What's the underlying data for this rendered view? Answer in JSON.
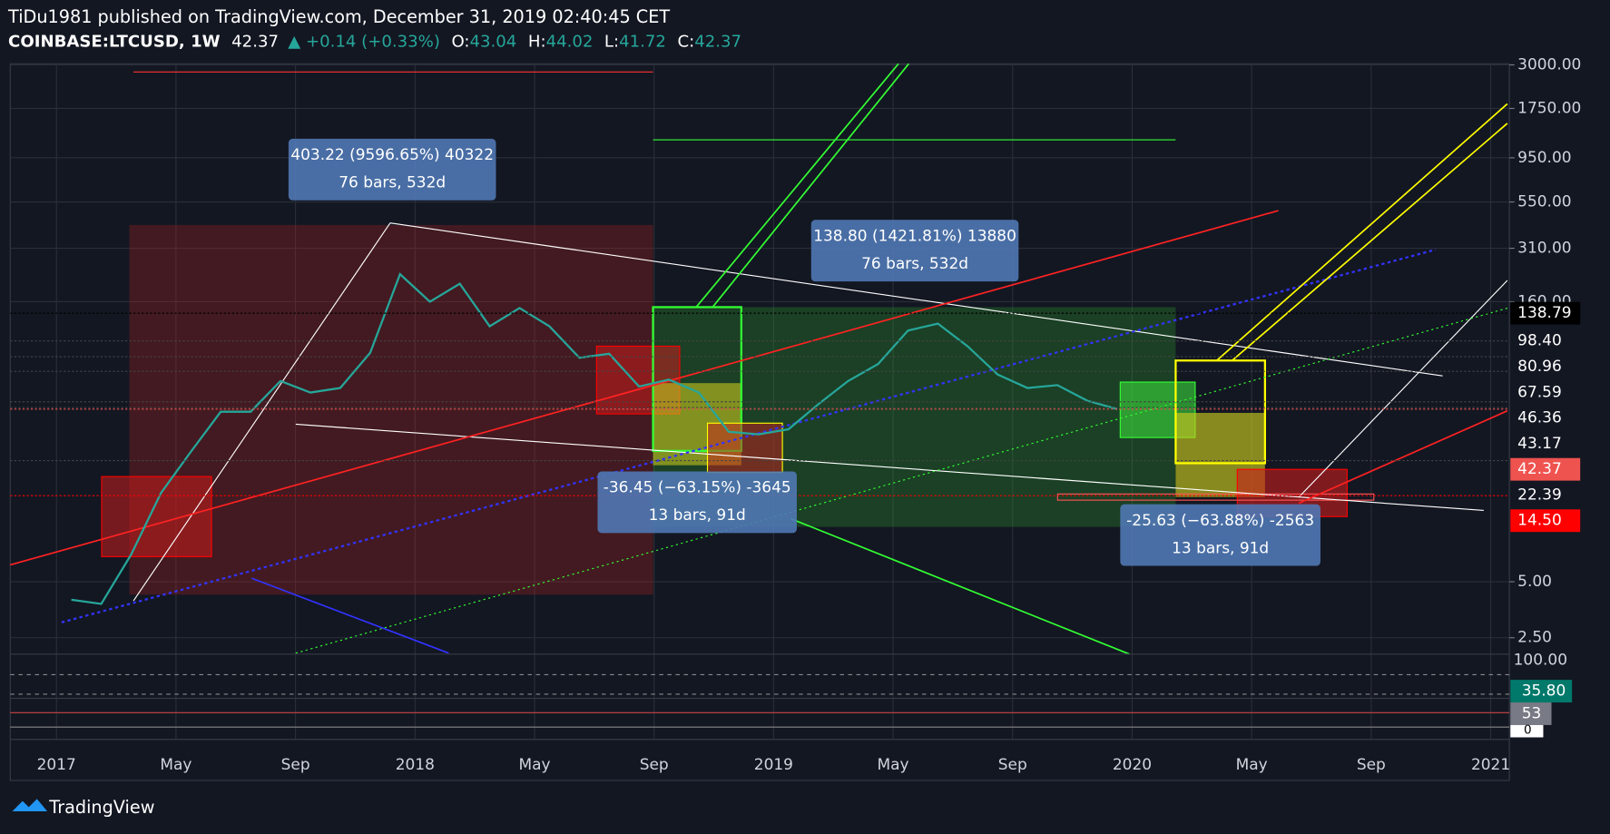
{
  "header": {
    "publisher": "TiDu1981 published on TradingView.com, December 31, 2019 02:40:45 CET",
    "symbol": "COINBASE:LTCUSD, 1W",
    "last": "42.37",
    "change": "▲ +0.14 (+0.33%)",
    "o_label": "O:",
    "o": "43.04",
    "h_label": "H:",
    "h": "44.02",
    "l_label": "L:",
    "l": "41.72",
    "c_label": "C:",
    "c": "42.37"
  },
  "chart_data": {
    "type": "line",
    "log": true,
    "color": "#26a69a",
    "x": [
      "2017-01",
      "2017-02",
      "2017-03",
      "2017-04",
      "2017-05",
      "2017-06",
      "2017-07",
      "2017-08",
      "2017-09",
      "2017-10",
      "2017-11",
      "2017-12",
      "2018-01",
      "2018-02",
      "2018-03",
      "2018-04",
      "2018-05",
      "2018-06",
      "2018-07",
      "2018-08",
      "2018-09",
      "2018-10",
      "2018-11",
      "2018-12",
      "2019-01",
      "2019-02",
      "2019-03",
      "2019-04",
      "2019-05",
      "2019-06",
      "2019-07",
      "2019-08",
      "2019-09",
      "2019-10",
      "2019-11",
      "2019-12"
    ],
    "series": [
      {
        "name": "LTCUSD",
        "color": "#26a69a",
        "values": [
          4.0,
          3.8,
          7,
          15,
          25,
          41,
          41,
          60,
          52,
          55,
          85,
          225,
          160,
          200,
          118,
          148,
          118,
          80,
          84,
          56,
          61,
          52,
          32,
          31,
          33,
          45,
          60,
          74,
          112,
          122,
          92,
          65,
          55,
          57,
          47,
          42.37
        ]
      }
    ],
    "ylim": [
      2.04,
      3040
    ],
    "yticks": [
      {
        "value": 2.5,
        "label": "2.50"
      },
      {
        "value": 5,
        "label": "5.00"
      },
      {
        "value": 160,
        "label": "160.00"
      },
      {
        "value": 310,
        "label": "310.00"
      },
      {
        "value": 550,
        "label": "550.00"
      },
      {
        "value": 950,
        "label": "950.00"
      },
      {
        "value": 1750,
        "label": "1750.00"
      },
      {
        "value": 3000,
        "label": "3000.00"
      }
    ],
    "price_lines": [
      {
        "value": 138.79,
        "label": "138.79",
        "color": "#000000"
      },
      {
        "value": 98.4,
        "label": "98.40",
        "color": "#131722"
      },
      {
        "value": 80.96,
        "label": "80.96",
        "color": "#131722"
      },
      {
        "value": 67.59,
        "label": "67.59",
        "color": "#131722"
      },
      {
        "value": 46.36,
        "label": "46.36",
        "color": "#131722"
      },
      {
        "value": 43.17,
        "label": "43.17",
        "color": "#131722"
      },
      {
        "value": 42.37,
        "label": "42.37",
        "color": "#ef5350"
      },
      {
        "value": 22.39,
        "label": "22.39",
        "color": "#131722"
      },
      {
        "value": 14.5,
        "label": "14.50",
        "color": "#ff0000"
      }
    ],
    "xticks": [
      {
        "value": "2017-01",
        "label": "2017"
      },
      {
        "value": "2017-05",
        "label": "May"
      },
      {
        "value": "2017-09",
        "label": "Sep"
      },
      {
        "value": "2018-01",
        "label": "2018"
      },
      {
        "value": "2018-05",
        "label": "May"
      },
      {
        "value": "2018-09",
        "label": "Sep"
      },
      {
        "value": "2019-01",
        "label": "2019"
      },
      {
        "value": "2019-05",
        "label": "May"
      },
      {
        "value": "2019-09",
        "label": "Sep"
      },
      {
        "value": "2020-01",
        "label": "2020"
      },
      {
        "value": "2020-05",
        "label": "May"
      },
      {
        "value": "2020-09",
        "label": "Sep"
      },
      {
        "value": "2021-01",
        "label": "2021"
      }
    ],
    "grid": true,
    "annotations": [
      [
        "403.22 (9596.65%) 40322",
        "76 bars, 532d"
      ],
      [
        "138.80 (1421.81%) 13880",
        "76 bars, 532d"
      ],
      [
        "-36.45 (−63.15%) -3645",
        "13 bars, 91d"
      ],
      [
        "-25.63 (−63.88%) -2563",
        "13 bars, 91d"
      ]
    ]
  },
  "indicators": {
    "rsi_top": "100.00",
    "rsi_value": "35.80",
    "osc_value": "53",
    "osc_zero": "0"
  },
  "footer": {
    "brand": "TradingView"
  }
}
